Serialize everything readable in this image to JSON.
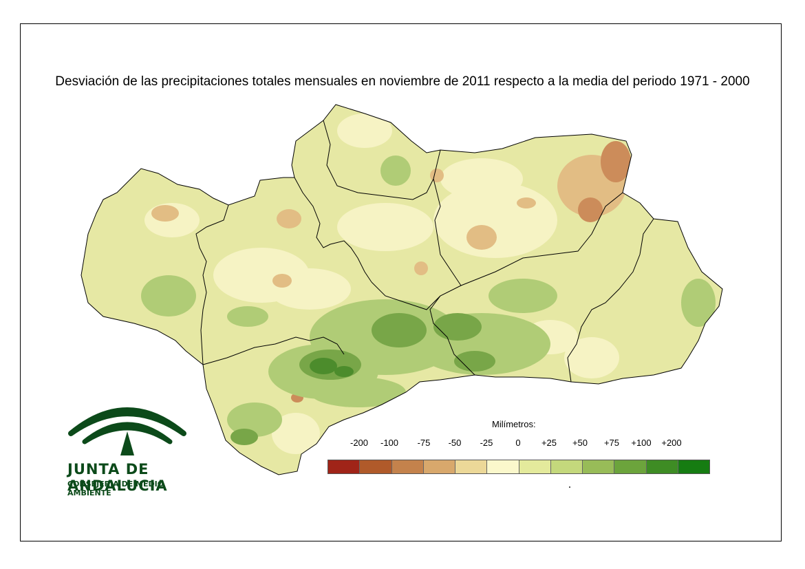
{
  "title": "Desviación de las precipitaciones totales mensuales en noviembre de 2011 respecto a la media del periodo 1971 - 2000",
  "logo": {
    "name": "JUNTA DE ANDALUCIA",
    "subtitle": "CONSEJERIA DE MEDIO AMBIENTE"
  },
  "legend": {
    "title": "Milímetros:",
    "labels": [
      "-200",
      "-100",
      "-75",
      "-50",
      "-25",
      "0",
      "+25",
      "+50",
      "+75",
      "+100",
      "+200"
    ],
    "colors": [
      "#a02418",
      "#b05a2a",
      "#c4824c",
      "#d8a86c",
      "#ecd898",
      "#fbf8cc",
      "#e4ea9c",
      "#c4d87c",
      "#98bc58",
      "#6ca43c",
      "#3e8c24",
      "#167c12"
    ]
  },
  "colors": {
    "base": "#e6e8a4",
    "pale": "#f6f3c4",
    "green": "#b0cc76",
    "dark_green": "#78a648",
    "darkest_green": "#4c8c2c",
    "tan": "#e2bd84",
    "brown": "#cc8c5a",
    "border": "#000000"
  }
}
